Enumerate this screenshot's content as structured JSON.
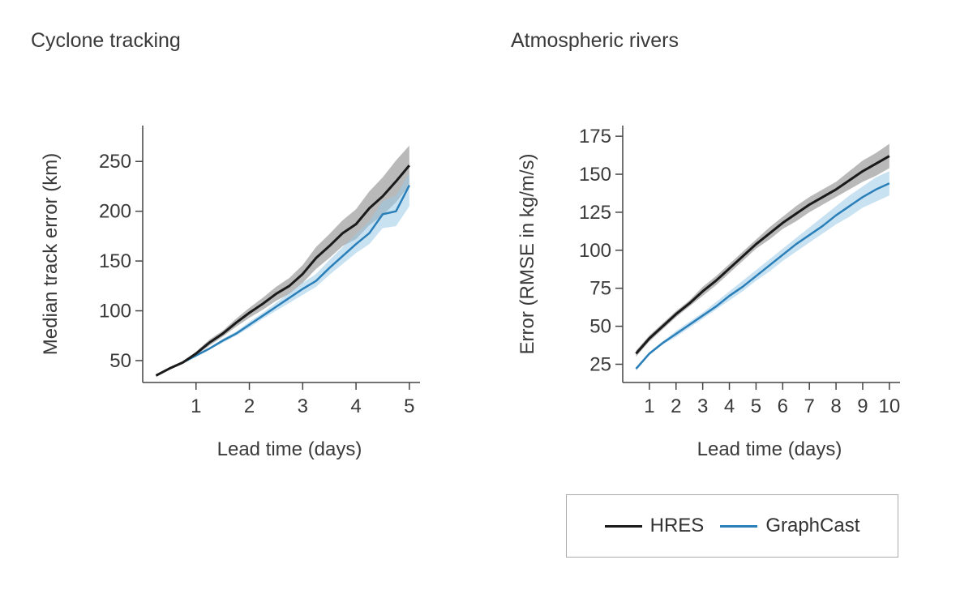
{
  "chart_data": [
    {
      "type": "line",
      "title": "Cyclone tracking",
      "xlabel": "Lead time (days)",
      "ylabel": "Median track error (km)",
      "xlim": [
        0,
        5.2
      ],
      "ylim": [
        28,
        286
      ],
      "xticks": [
        1,
        2,
        3,
        4,
        5
      ],
      "yticks": [
        50,
        100,
        150,
        200,
        250
      ],
      "grid": false,
      "x": [
        0.25,
        0.5,
        0.75,
        1,
        1.25,
        1.5,
        1.75,
        2,
        2.25,
        2.5,
        2.75,
        3,
        3.25,
        3.5,
        3.75,
        4,
        4.25,
        4.5,
        4.75,
        5
      ],
      "series": [
        {
          "name": "HRES",
          "color": "#1a1a1a",
          "band_color": "#8a8a8a",
          "values": [
            35,
            42,
            48,
            57,
            68,
            77,
            88,
            98,
            107,
            117,
            125,
            137,
            153,
            165,
            178,
            187,
            203,
            215,
            230,
            246
          ],
          "lower": [
            34,
            41,
            47,
            55,
            65,
            74,
            84,
            93,
            101,
            110,
            117,
            128,
            142,
            153,
            165,
            172,
            186,
            196,
            209,
            226
          ],
          "upper": [
            36,
            43,
            49,
            59,
            71,
            80,
            92,
            103,
            113,
            124,
            133,
            146,
            164,
            177,
            191,
            202,
            220,
            234,
            251,
            266
          ]
        },
        {
          "name": "GraphCast",
          "color": "#2a7fb8",
          "band_color": "#9ccbe8",
          "values": [
            35,
            42,
            48,
            55,
            62,
            70,
            77,
            86,
            95,
            104,
            113,
            122,
            130,
            143,
            155,
            167,
            178,
            197,
            200,
            226
          ],
          "lower": [
            34,
            41,
            47,
            54,
            61,
            68,
            75,
            83,
            92,
            100,
            108,
            116,
            124,
            136,
            147,
            158,
            167,
            183,
            185,
            205
          ],
          "upper": [
            36,
            43,
            49,
            56,
            63,
            72,
            79,
            89,
            98,
            108,
            118,
            128,
            137,
            151,
            164,
            177,
            190,
            210,
            216,
            238
          ]
        }
      ]
    },
    {
      "type": "line",
      "title": "Atmospheric rivers",
      "xlabel": "Lead time (days)",
      "ylabel": "Error (RMSE in kg/m/s)",
      "xlim": [
        0,
        10.4
      ],
      "ylim": [
        13,
        182
      ],
      "xticks": [
        1,
        2,
        3,
        4,
        5,
        6,
        7,
        8,
        9,
        10
      ],
      "yticks": [
        25,
        50,
        75,
        100,
        125,
        150,
        175
      ],
      "grid": false,
      "x": [
        0.5,
        1,
        1.5,
        2,
        2.5,
        3,
        3.5,
        4,
        4.5,
        5,
        5.5,
        6,
        6.5,
        7,
        7.5,
        8,
        8.5,
        9,
        9.5,
        10
      ],
      "series": [
        {
          "name": "HRES",
          "color": "#1a1a1a",
          "band_color": "#8a8a8a",
          "values": [
            32,
            42,
            50,
            58,
            65,
            73,
            80,
            88,
            96,
            104,
            111,
            118,
            124,
            130,
            135,
            140,
            146,
            152,
            157,
            162
          ],
          "lower": [
            30,
            40,
            48,
            56,
            63,
            70,
            77,
            85,
            93,
            101,
            107,
            114,
            119,
            125,
            130,
            135,
            140,
            145,
            149,
            154
          ],
          "upper": [
            34,
            44,
            52,
            60,
            67,
            76,
            83,
            91,
            99,
            107,
            115,
            122,
            129,
            135,
            140,
            145,
            152,
            159,
            164,
            170
          ]
        },
        {
          "name": "GraphCast",
          "color": "#2a7fb8",
          "band_color": "#9ccbe8",
          "values": [
            22,
            32,
            39,
            45,
            51,
            57,
            63,
            70,
            76,
            83,
            90,
            97,
            104,
            110,
            116,
            123,
            129,
            135,
            140,
            144
          ],
          "lower": [
            21,
            31,
            38,
            43,
            49,
            55,
            61,
            67,
            73,
            80,
            86,
            93,
            99,
            105,
            111,
            117,
            122,
            128,
            132,
            136
          ],
          "upper": [
            23,
            33,
            40,
            47,
            53,
            59,
            66,
            73,
            80,
            87,
            94,
            101,
            108,
            115,
            122,
            129,
            136,
            142,
            148,
            152
          ]
        }
      ]
    }
  ],
  "legend": {
    "placement": "bottom-right",
    "items": [
      {
        "label": "HRES",
        "color": "#1a1a1a"
      },
      {
        "label": "GraphCast",
        "color": "#2a7fb8"
      }
    ]
  }
}
